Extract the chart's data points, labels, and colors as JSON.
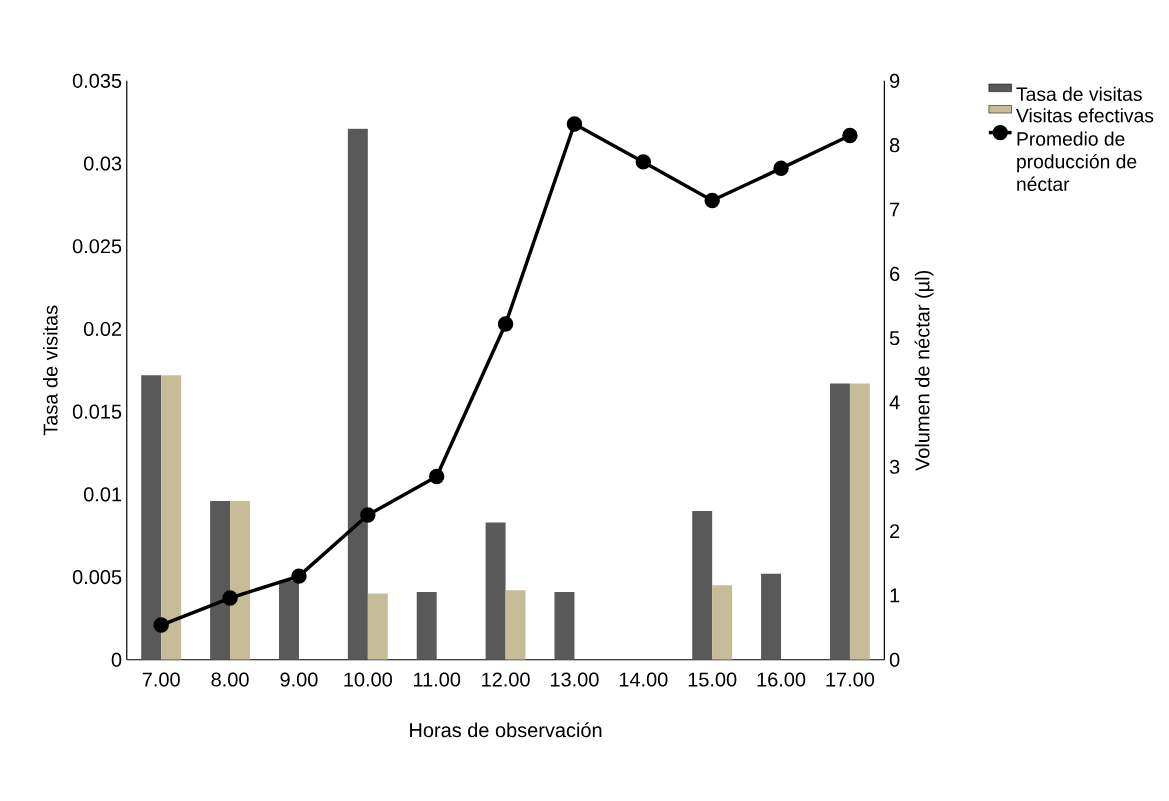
{
  "chart_data": {
    "type": "bar",
    "xlabel": "Horas de observación",
    "ylabel": "Tasa de visitas",
    "y2label": "Volumen de néctar (µl)",
    "categories": [
      "7.00",
      "8.00",
      "9.00",
      "10.00",
      "11.00",
      "12.00",
      "13.00",
      "14.00",
      "15.00",
      "16.00",
      "17.00"
    ],
    "series": [
      {
        "name": "Tasa de visitas",
        "color": "#595959",
        "values": [
          0.0172,
          0.0096,
          0.0048,
          0.0321,
          0.0041,
          0.0083,
          0.0041,
          0,
          0.009,
          0.0052,
          0.0167
        ]
      },
      {
        "name": "Visitas efectivas",
        "color": "#c6bd98",
        "values": [
          0.0172,
          0.0096,
          0,
          0.004,
          0,
          0.0042,
          0,
          0,
          0.0045,
          0,
          0.0167
        ]
      },
      {
        "name": "Promedio de producción de néctar",
        "type": "line",
        "axis": "y2",
        "color": "#000000",
        "marker": "circle",
        "values": [
          0.54,
          0.96,
          1.3,
          2.25,
          2.85,
          5.22,
          8.33,
          7.74,
          7.14,
          7.64,
          8.15
        ]
      }
    ],
    "ylim": [
      0,
      0.035
    ],
    "yticks": [
      0,
      0.005,
      0.01,
      0.015,
      0.02,
      0.025,
      0.03,
      0.035
    ],
    "y2lim": [
      0,
      9
    ],
    "y2ticks": [
      0,
      1,
      2,
      3,
      4,
      5,
      6,
      7,
      8,
      9
    ],
    "legend": "right",
    "grid": false
  }
}
